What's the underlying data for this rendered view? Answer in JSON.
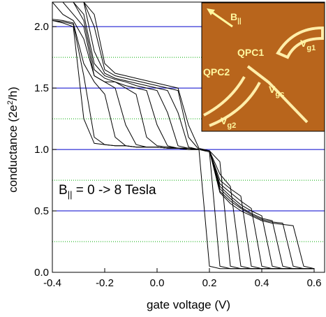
{
  "chart_data": {
    "type": "line",
    "xlabel": "gate voltage (V)",
    "ylabel": {
      "text": "conductance (2e",
      "sup": "2",
      "tail": "/h)"
    },
    "annotation": {
      "text": "B",
      "sub": "||",
      "tail": " = 0 -> 8 Tesla"
    },
    "inset": {
      "field": {
        "text": "B",
        "sub": "||"
      },
      "labels": [
        "QPC1",
        "QPC2"
      ],
      "gates": [
        {
          "text": "V",
          "sub": "g1"
        },
        {
          "text": "V",
          "sub": "gc"
        },
        {
          "text": "V",
          "sub": "g2"
        }
      ]
    },
    "x": [
      -0.4,
      -0.36,
      -0.32,
      -0.28,
      -0.24,
      -0.2,
      -0.16,
      -0.12,
      -0.08,
      -0.04,
      0,
      0.04,
      0.08,
      0.12,
      0.16,
      0.2,
      0.24,
      0.28,
      0.32,
      0.36,
      0.4,
      0.44,
      0.48,
      0.52,
      0.56,
      0.6
    ],
    "series": [
      {
        "color": "#000000",
        "values": [
          2.05,
          2.03,
          2.0,
          1.25,
          1.05,
          1.04,
          1.03,
          1.03,
          1.02,
          1.02,
          1.02,
          1.01,
          1.01,
          1.01,
          1.0,
          0.05,
          0.03,
          0.03,
          0.03,
          0.03,
          0.03,
          0.03,
          0.03,
          0.03,
          0.03,
          0.03
        ]
      },
      {
        "color": "#000000",
        "values": [
          2.05,
          2.04,
          2.02,
          1.6,
          1.1,
          1.04,
          1.03,
          1.03,
          1.02,
          1.02,
          1.02,
          1.01,
          1.01,
          1.01,
          1.0,
          0.98,
          0.05,
          0.03,
          0.03,
          0.03,
          0.03,
          0.03,
          0.03,
          0.03,
          0.03,
          0.03
        ]
      },
      {
        "color": "#000000",
        "values": [
          2.06,
          2.05,
          2.03,
          1.7,
          1.55,
          1.45,
          1.1,
          1.03,
          1.02,
          1.02,
          1.02,
          1.01,
          1.01,
          1.01,
          1.0,
          0.99,
          0.9,
          0.05,
          0.03,
          0.03,
          0.03,
          0.03,
          0.03,
          0.03,
          0.03,
          0.03
        ]
      },
      {
        "color": "#000000",
        "values": [
          2.2,
          2.1,
          2.05,
          1.9,
          1.6,
          1.55,
          1.5,
          1.2,
          1.04,
          1.02,
          1.02,
          1.01,
          1.01,
          1.0,
          1.0,
          0.99,
          0.8,
          0.7,
          0.05,
          0.03,
          0.03,
          0.03,
          0.03,
          0.03,
          0.03,
          0.03
        ]
      },
      {
        "color": "#000000",
        "values": [
          2.2,
          2.2,
          2.1,
          2.0,
          1.6,
          1.55,
          1.55,
          1.5,
          1.45,
          1.1,
          1.03,
          1.02,
          1.01,
          1.0,
          1.0,
          0.99,
          0.75,
          0.68,
          0.62,
          0.05,
          0.03,
          0.03,
          0.03,
          0.03,
          0.03,
          0.03
        ]
      },
      {
        "color": "#000000",
        "values": [
          2.2,
          2.2,
          2.2,
          2.05,
          1.65,
          1.58,
          1.55,
          1.52,
          1.5,
          1.48,
          1.2,
          1.03,
          1.01,
          1.0,
          1.0,
          0.99,
          0.72,
          0.65,
          0.58,
          0.52,
          0.05,
          0.03,
          0.03,
          0.03,
          0.03,
          0.03
        ]
      },
      {
        "color": "#000000",
        "values": [
          2.2,
          2.2,
          2.2,
          2.1,
          1.7,
          1.6,
          1.57,
          1.55,
          1.52,
          1.5,
          1.48,
          1.3,
          1.03,
          1.01,
          1.0,
          0.99,
          0.7,
          0.62,
          0.55,
          0.5,
          0.46,
          0.05,
          0.03,
          0.03,
          0.03,
          0.03
        ]
      },
      {
        "color": "#000000",
        "values": [
          2.2,
          2.2,
          2.2,
          2.2,
          1.8,
          1.62,
          1.58,
          1.56,
          1.54,
          1.52,
          1.5,
          1.48,
          1.3,
          1.02,
          1.0,
          0.99,
          0.68,
          0.6,
          0.53,
          0.48,
          0.44,
          0.42,
          0.05,
          0.03,
          0.03,
          0.03
        ]
      },
      {
        "color": "#000000",
        "values": [
          2.2,
          2.2,
          2.2,
          2.2,
          2.0,
          1.65,
          1.6,
          1.58,
          1.56,
          1.54,
          1.52,
          1.5,
          1.48,
          1.1,
          1.0,
          0.99,
          0.66,
          0.58,
          0.52,
          0.47,
          0.43,
          0.41,
          0.4,
          0.05,
          0.03,
          0.03
        ]
      },
      {
        "color": "#000000",
        "values": [
          2.2,
          2.2,
          2.2,
          2.2,
          2.1,
          1.7,
          1.62,
          1.6,
          1.58,
          1.56,
          1.54,
          1.52,
          1.5,
          1.2,
          1.01,
          0.99,
          0.65,
          0.56,
          0.5,
          0.46,
          0.42,
          0.4,
          0.39,
          0.38,
          0.05,
          0.03
        ]
      }
    ],
    "xlim": [
      -0.4,
      0.64
    ],
    "ylim": [
      0,
      2.2
    ],
    "xticks": [
      -0.4,
      -0.2,
      {
        "value": 0,
        "label": "0.0"
      },
      0.2,
      0.4,
      0.6
    ],
    "yticks": [
      {
        "value": 0,
        "label": "0.0"
      },
      0.5,
      {
        "value": 1,
        "label": "1.0"
      },
      1.5,
      {
        "value": 2,
        "label": "2.0"
      }
    ],
    "major_grid": [
      0.5,
      1,
      1.5,
      2
    ],
    "major_grid_color": "#0000cc",
    "minor_grid": [
      0.25,
      0.75,
      1.25,
      1.75
    ],
    "minor_grid_color": "#00aa00"
  }
}
